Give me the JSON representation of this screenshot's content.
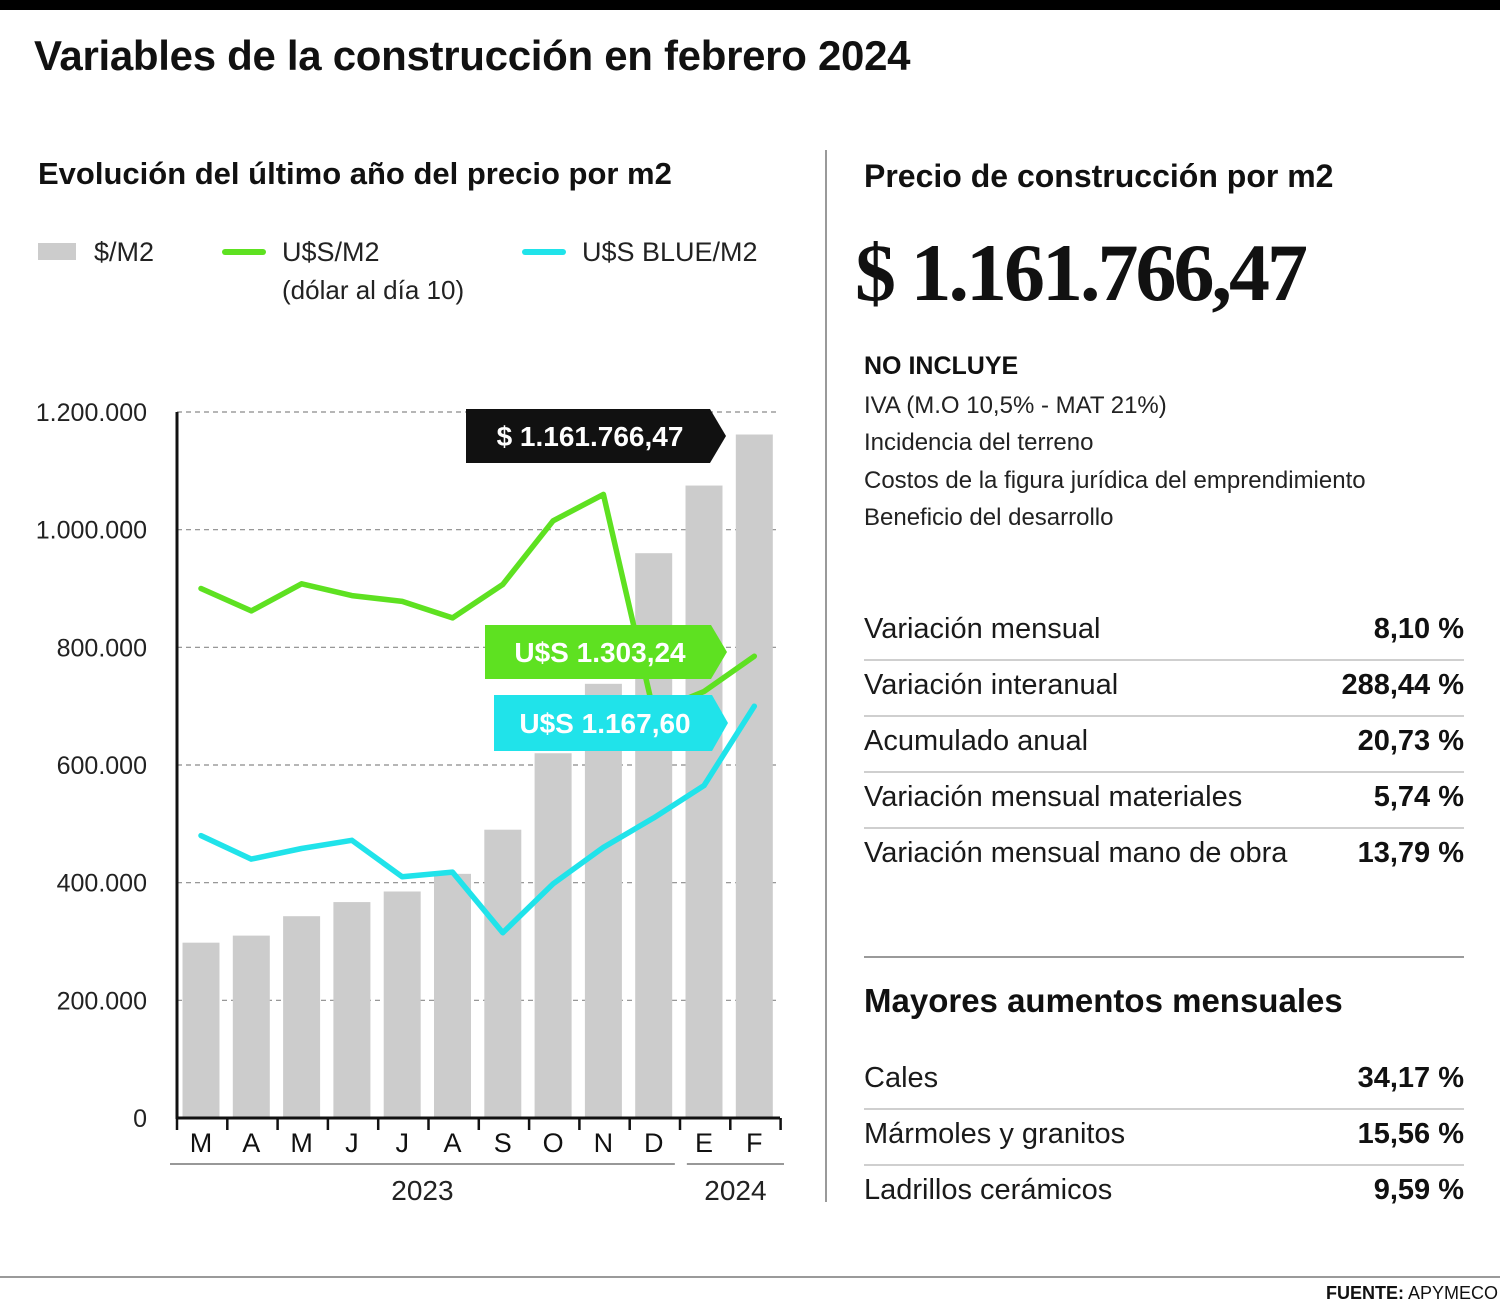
{
  "title": "Variables de la construcción en febrero 2024",
  "chart": {
    "title": "Evolución del último año del precio por m2",
    "legend": {
      "bars": "$/M2",
      "green": "U$S/M2",
      "green_note": "(dólar al día 10)",
      "cyan": "U$S BLUE/M2"
    }
  },
  "chart_data": {
    "type": "bar",
    "title": "Evolución del último año del precio por m2",
    "categories": [
      "M",
      "A",
      "M",
      "J",
      "J",
      "A",
      "S",
      "O",
      "N",
      "D",
      "E",
      "F"
    ],
    "year_groups": [
      {
        "label": "2023",
        "from": 0,
        "to": 9
      },
      {
        "label": "2024",
        "from": 10,
        "to": 11
      }
    ],
    "ylim": [
      0,
      1200000
    ],
    "yticks": [
      0,
      200000,
      400000,
      600000,
      800000,
      1000000,
      1200000
    ],
    "ytick_labels": [
      "0",
      "200.000",
      "400.000",
      "600.000",
      "800.000",
      "1.000.000",
      "1.200.000"
    ],
    "grid": "dashed horizontal",
    "series": [
      {
        "name": "$/M2",
        "kind": "bar",
        "color": "#cccccc",
        "values": [
          298000,
          310000,
          343000,
          367000,
          385000,
          415000,
          490000,
          620000,
          738000,
          960000,
          1075000,
          1161766.47
        ]
      },
      {
        "name": "U$S/M2",
        "kind": "line",
        "color": "#5ee121",
        "values": [
          900000,
          862000,
          908000,
          888000,
          878000,
          850000,
          907000,
          1015000,
          1060000,
          690000,
          725000,
          785000
        ]
      },
      {
        "name": "U$S BLUE/M2",
        "kind": "line",
        "color": "#20e3ea",
        "values": [
          480000,
          440000,
          458000,
          472000,
          410000,
          418000,
          315000,
          398000,
          460000,
          510000,
          565000,
          700000
        ]
      }
    ],
    "callouts": [
      {
        "text": "$ 1.161.766,47",
        "series": "$/M2",
        "color": "#111111"
      },
      {
        "text": "U$S 1.303,24",
        "series": "U$S/M2",
        "color": "#5ee121"
      },
      {
        "text": "U$S 1.167,60",
        "series": "U$S BLUE/M2",
        "color": "#20e3ea"
      }
    ]
  },
  "price_panel": {
    "heading": "Precio de construcción por m2",
    "price": "$ 1.161.766,47",
    "no_incluye_title": "NO INCLUYE",
    "no_incluye": [
      "IVA (M.O 10,5% - MAT 21%)",
      "Incidencia del terreno",
      "Costos de la figura jurídica del emprendimiento",
      "Beneficio del desarrollo"
    ],
    "stats": [
      {
        "label": "Variación mensual",
        "value": "8,10",
        "unit": "%"
      },
      {
        "label": "Variación interanual",
        "value": "288,44",
        "unit": "%"
      },
      {
        "label": "Acumulado anual",
        "value": "20,73",
        "unit": "%"
      },
      {
        "label": "Variación mensual materiales",
        "value": "5,74",
        "unit": "%"
      },
      {
        "label": "Variación mensual mano de obra",
        "value": "13,79",
        "unit": "%"
      }
    ],
    "increases_heading": "Mayores aumentos mensuales",
    "increases": [
      {
        "label": "Cales",
        "value": "34,17",
        "unit": "%"
      },
      {
        "label": "Mármoles y granitos",
        "value": "15,56",
        "unit": "%"
      },
      {
        "label": "Ladrillos cerámicos",
        "value": "9,59",
        "unit": "%"
      }
    ]
  },
  "source": {
    "label": "FUENTE:",
    "value": "APYMECO"
  }
}
